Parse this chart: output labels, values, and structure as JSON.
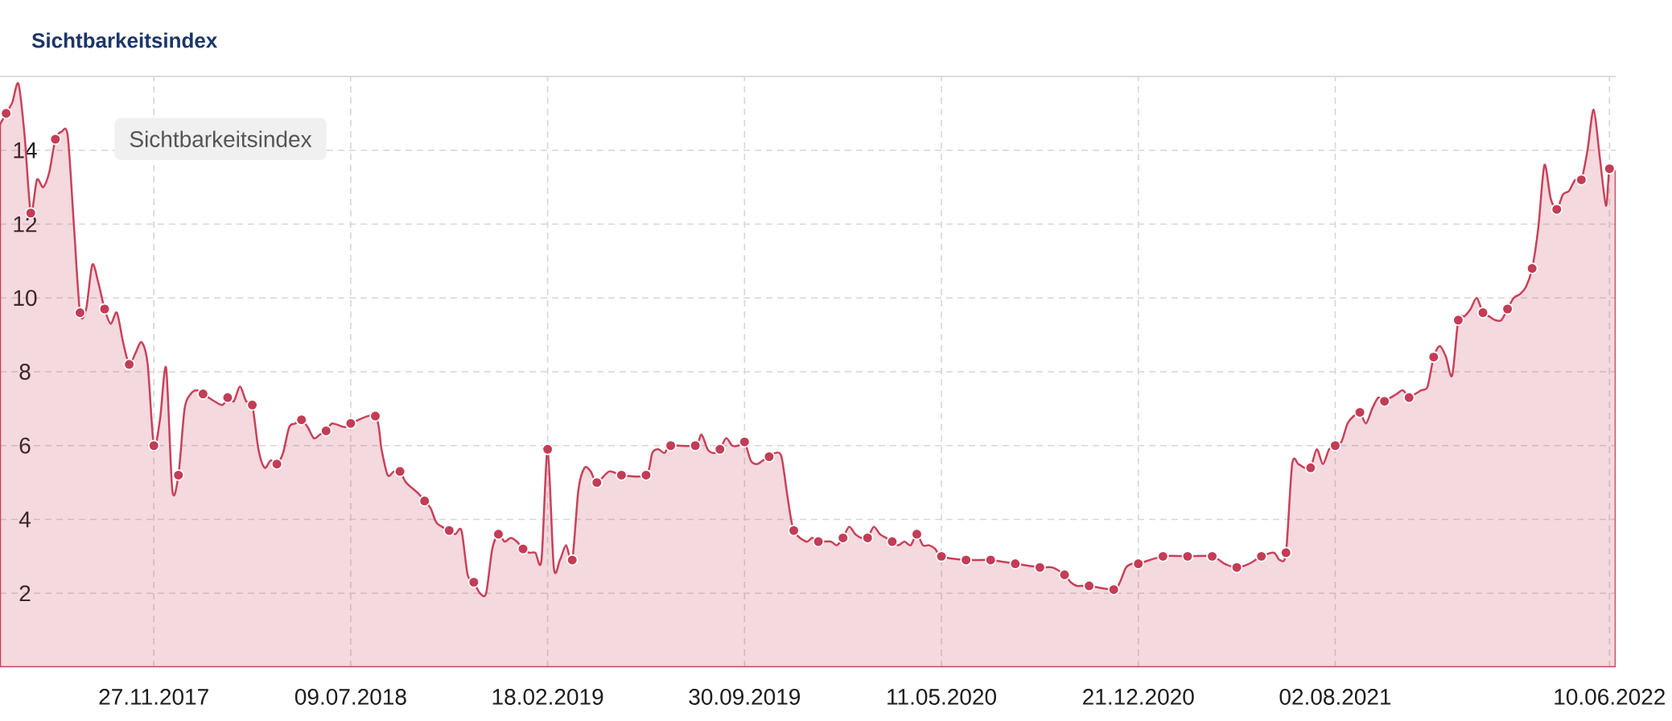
{
  "chart_data": {
    "type": "area",
    "title": "Sichtbarkeitsindex",
    "annotations": [
      "Sichtbarkeitsindex"
    ],
    "grid": true,
    "xlim": [
      "2017-06-05",
      "2022-06-17"
    ],
    "xticks": [
      {
        "value": "2017-11-27",
        "label": "27.11.2017"
      },
      {
        "value": "2018-07-09",
        "label": "09.07.2018"
      },
      {
        "value": "2019-02-18",
        "label": "18.02.2019"
      },
      {
        "value": "2019-09-30",
        "label": "30.09.2019"
      },
      {
        "value": "2020-05-11",
        "label": "11.05.2020"
      },
      {
        "value": "2020-12-21",
        "label": "21.12.2020"
      },
      {
        "value": "2021-08-02",
        "label": "02.08.2021"
      },
      {
        "value": "2022-06-10",
        "label": "10.06.2022"
      }
    ],
    "ylim": [
      0,
      16
    ],
    "yticks": [
      2,
      4,
      6,
      8,
      10,
      12,
      14
    ],
    "series": [
      {
        "color": "#c8415a",
        "x": [
          "2017-06-05",
          "2017-06-12",
          "2017-06-19",
          "2017-06-26",
          "2017-07-03",
          "2017-07-10",
          "2017-07-17",
          "2017-07-24",
          "2017-07-31",
          "2017-08-07",
          "2017-08-14",
          "2017-08-21",
          "2017-08-28",
          "2017-09-04",
          "2017-09-11",
          "2017-09-18",
          "2017-09-25",
          "2017-10-02",
          "2017-10-09",
          "2017-10-16",
          "2017-10-23",
          "2017-10-30",
          "2017-11-06",
          "2017-11-13",
          "2017-11-20",
          "2017-11-27",
          "2017-12-04",
          "2017-12-11",
          "2017-12-18",
          "2017-12-25",
          "2018-01-01",
          "2018-01-08",
          "2018-01-15",
          "2018-01-22",
          "2018-02-12",
          "2018-02-19",
          "2018-02-26",
          "2018-03-05",
          "2018-03-12",
          "2018-03-19",
          "2018-03-26",
          "2018-04-02",
          "2018-04-09",
          "2018-04-16",
          "2018-04-23",
          "2018-04-30",
          "2018-05-07",
          "2018-05-14",
          "2018-05-21",
          "2018-05-28",
          "2018-06-04",
          "2018-06-11",
          "2018-06-18",
          "2018-07-02",
          "2018-07-09",
          "2018-08-06",
          "2018-08-13",
          "2018-08-20",
          "2018-08-27",
          "2018-09-03",
          "2018-09-10",
          "2018-09-24",
          "2018-10-01",
          "2018-10-08",
          "2018-10-15",
          "2018-10-29",
          "2018-11-05",
          "2018-11-12",
          "2018-11-19",
          "2018-11-26",
          "2018-12-03",
          "2018-12-10",
          "2018-12-17",
          "2018-12-24",
          "2018-12-31",
          "2019-01-07",
          "2019-01-14",
          "2019-01-21",
          "2019-01-28",
          "2019-02-04",
          "2019-02-11",
          "2019-02-18",
          "2019-02-25",
          "2019-03-04",
          "2019-03-11",
          "2019-03-18",
          "2019-03-25",
          "2019-04-01",
          "2019-04-08",
          "2019-04-15",
          "2019-04-29",
          "2019-05-13",
          "2019-06-10",
          "2019-06-17",
          "2019-06-24",
          "2019-07-01",
          "2019-07-08",
          "2019-08-05",
          "2019-08-12",
          "2019-08-19",
          "2019-08-26",
          "2019-09-02",
          "2019-09-09",
          "2019-09-16",
          "2019-09-23",
          "2019-09-30",
          "2019-10-07",
          "2019-10-14",
          "2019-10-21",
          "2019-10-28",
          "2019-11-04",
          "2019-11-11",
          "2019-11-18",
          "2019-11-25",
          "2019-12-09",
          "2019-12-16",
          "2019-12-23",
          "2020-01-06",
          "2020-01-13",
          "2020-01-20",
          "2020-01-27",
          "2020-02-03",
          "2020-02-10",
          "2020-02-17",
          "2020-02-24",
          "2020-03-02",
          "2020-03-09",
          "2020-03-16",
          "2020-03-23",
          "2020-03-30",
          "2020-04-06",
          "2020-04-13",
          "2020-04-20",
          "2020-04-27",
          "2020-05-04",
          "2020-05-11",
          "2020-06-08",
          "2020-07-06",
          "2020-08-03",
          "2020-08-31",
          "2020-09-14",
          "2020-09-28",
          "2020-10-05",
          "2020-10-12",
          "2020-10-26",
          "2020-11-23",
          "2020-11-30",
          "2020-12-07",
          "2020-12-14",
          "2020-12-21",
          "2021-01-18",
          "2021-02-15",
          "2021-03-15",
          "2021-03-29",
          "2021-04-12",
          "2021-04-26",
          "2021-05-10",
          "2021-05-24",
          "2021-05-31",
          "2021-06-07",
          "2021-06-14",
          "2021-06-21",
          "2021-06-28",
          "2021-07-05",
          "2021-07-12",
          "2021-07-19",
          "2021-07-26",
          "2021-08-02",
          "2021-08-09",
          "2021-08-16",
          "2021-08-23",
          "2021-08-30",
          "2021-09-06",
          "2021-09-13",
          "2021-09-20",
          "2021-09-27",
          "2021-10-04",
          "2021-10-11",
          "2021-10-18",
          "2021-10-25",
          "2021-11-01",
          "2021-11-08",
          "2021-11-15",
          "2021-11-22",
          "2021-11-29",
          "2021-12-06",
          "2021-12-13",
          "2021-12-20",
          "2021-12-27",
          "2022-01-03",
          "2022-01-10",
          "2022-01-17",
          "2022-01-24",
          "2022-01-31",
          "2022-02-07",
          "2022-02-14",
          "2022-02-21",
          "2022-02-28",
          "2022-03-07",
          "2022-03-14",
          "2022-03-21",
          "2022-03-28",
          "2022-04-04",
          "2022-04-11",
          "2022-04-18",
          "2022-04-25",
          "2022-05-02",
          "2022-05-09",
          "2022-05-16",
          "2022-05-23",
          "2022-05-30",
          "2022-06-06",
          "2022-06-10",
          "2022-06-17"
        ],
        "values": [
          14.7,
          15.0,
          15.3,
          15.8,
          14.4,
          12.3,
          13.2,
          13.0,
          13.4,
          14.3,
          14.5,
          14.4,
          12.0,
          9.6,
          9.7,
          10.9,
          10.4,
          9.7,
          9.3,
          9.6,
          8.8,
          8.2,
          8.5,
          8.8,
          8.2,
          6.0,
          6.7,
          8.1,
          4.8,
          5.2,
          7.0,
          7.4,
          7.5,
          7.4,
          7.1,
          7.3,
          7.2,
          7.6,
          7.2,
          7.1,
          5.9,
          5.4,
          5.6,
          5.5,
          5.8,
          6.5,
          6.6,
          6.7,
          6.5,
          6.2,
          6.3,
          6.4,
          6.6,
          6.5,
          6.6,
          6.8,
          5.9,
          5.2,
          5.3,
          5.3,
          5.0,
          4.7,
          4.5,
          4.3,
          3.9,
          3.7,
          3.6,
          3.7,
          2.5,
          2.3,
          2.0,
          2.0,
          3.2,
          3.6,
          3.4,
          3.5,
          3.4,
          3.2,
          3.1,
          3.1,
          2.9,
          5.9,
          2.7,
          2.9,
          3.3,
          2.9,
          4.8,
          5.4,
          5.3,
          5.0,
          5.3,
          5.2,
          5.2,
          5.8,
          5.9,
          5.8,
          6.0,
          6.0,
          6.3,
          5.9,
          5.8,
          5.9,
          6.2,
          6.0,
          6.0,
          6.1,
          5.6,
          5.5,
          5.6,
          5.7,
          5.8,
          5.7,
          4.6,
          3.7,
          3.4,
          3.5,
          3.4,
          3.4,
          3.3,
          3.5,
          3.8,
          3.6,
          3.5,
          3.5,
          3.8,
          3.6,
          3.5,
          3.4,
          3.3,
          3.4,
          3.3,
          3.6,
          3.3,
          3.3,
          3.2,
          3.0,
          2.9,
          2.9,
          2.8,
          2.7,
          2.7,
          2.5,
          2.3,
          2.2,
          2.2,
          2.1,
          2.3,
          2.7,
          2.8,
          2.8,
          3.0,
          3.0,
          3.0,
          2.8,
          2.7,
          2.8,
          3.0,
          3.1,
          2.9,
          3.1,
          5.5,
          5.5,
          5.4,
          5.4,
          5.9,
          5.5,
          5.9,
          6.0,
          6.1,
          6.6,
          6.8,
          6.9,
          6.6,
          7.0,
          7.3,
          7.2,
          7.3,
          7.4,
          7.5,
          7.3,
          7.4,
          7.5,
          7.6,
          8.4,
          8.7,
          8.4,
          7.9,
          9.4,
          9.5,
          9.7,
          10.0,
          9.6,
          9.5,
          9.4,
          9.4,
          9.7,
          10.0,
          10.1,
          10.3,
          10.8,
          11.9,
          13.6,
          12.7,
          12.4,
          12.8,
          12.9,
          13.2,
          13.2,
          14.0,
          15.1,
          13.8,
          12.5,
          13.5,
          13.4
        ]
      },
      {
        "type": "scatter",
        "color": "#c43c56",
        "marker": "circle",
        "x": [
          "2017-06-12",
          "2017-07-10",
          "2017-08-07",
          "2017-09-04",
          "2017-10-02",
          "2017-10-30",
          "2017-11-27",
          "2017-12-25",
          "2018-01-22",
          "2018-02-19",
          "2018-03-19",
          "2018-04-16",
          "2018-05-14",
          "2018-06-11",
          "2018-07-09",
          "2018-08-06",
          "2018-09-03",
          "2018-10-01",
          "2018-10-29",
          "2018-11-26",
          "2018-12-24",
          "2019-01-21",
          "2019-02-18",
          "2019-03-18",
          "2019-04-15",
          "2019-05-13",
          "2019-06-10",
          "2019-07-08",
          "2019-08-05",
          "2019-09-02",
          "2019-09-30",
          "2019-10-28",
          "2019-11-25",
          "2019-12-23",
          "2020-01-20",
          "2020-02-17",
          "2020-03-16",
          "2020-04-13",
          "2020-05-11",
          "2020-06-08",
          "2020-07-06",
          "2020-08-03",
          "2020-08-31",
          "2020-09-28",
          "2020-10-26",
          "2020-11-23",
          "2020-12-21",
          "2021-01-18",
          "2021-02-15",
          "2021-03-15",
          "2021-04-12",
          "2021-05-10",
          "2021-06-07",
          "2021-07-05",
          "2021-08-02",
          "2021-08-30",
          "2021-09-27",
          "2021-10-25",
          "2021-11-22",
          "2021-12-20",
          "2022-01-17",
          "2022-02-14",
          "2022-03-14",
          "2022-04-11",
          "2022-05-09",
          "2022-06-10"
        ],
        "values": [
          15.0,
          12.3,
          14.3,
          9.6,
          9.7,
          8.2,
          6.0,
          5.2,
          7.4,
          7.3,
          7.1,
          5.5,
          6.7,
          6.4,
          6.6,
          6.8,
          5.3,
          4.5,
          3.7,
          2.3,
          3.6,
          3.2,
          5.9,
          2.9,
          5.0,
          5.2,
          5.2,
          6.0,
          6.0,
          5.9,
          6.1,
          5.7,
          3.7,
          3.4,
          3.5,
          3.5,
          3.4,
          3.6,
          3.0,
          2.9,
          2.9,
          2.8,
          2.7,
          2.5,
          2.2,
          2.1,
          2.8,
          3.0,
          3.0,
          3.0,
          2.7,
          3.0,
          3.1,
          5.4,
          6.0,
          6.9,
          7.2,
          7.3,
          8.4,
          9.4,
          9.6,
          9.7,
          10.8,
          12.4,
          13.2,
          13.5
        ]
      }
    ]
  }
}
